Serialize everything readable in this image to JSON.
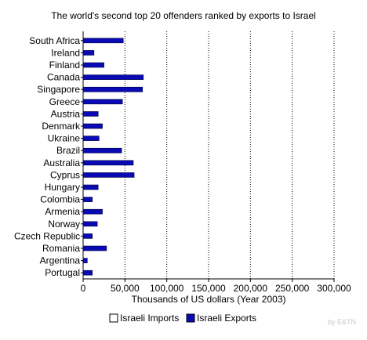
{
  "chart_data": {
    "type": "bar",
    "orientation": "horizontal",
    "title": "The world's second top 20 offenders ranked by exports to Israel",
    "xlabel": "Thousands of US dollars (Year 2003)",
    "ylabel": "",
    "xlim": [
      0,
      300000
    ],
    "x_ticks": [
      "0",
      "50,000",
      "100,000",
      "150,000",
      "200,000",
      "250,000",
      "300,000"
    ],
    "x_tick_values": [
      0,
      50000,
      100000,
      150000,
      200000,
      250000,
      300000
    ],
    "grid": "vertical-dotted",
    "legend_placement": "bottom-center",
    "categories": [
      "South Africa",
      "Ireland",
      "Finland",
      "Canada",
      "Singapore",
      "Greece",
      "Austria",
      "Denmark",
      "Ukraine",
      "Brazil",
      "Australia",
      "Cyprus",
      "Hungary",
      "Colombia",
      "Armenia",
      "Norway",
      "Czech Republic",
      "Romania",
      "Argentina",
      "Portugal"
    ],
    "series": [
      {
        "name": "Israeli Imports",
        "color": "#ffffff",
        "values": [
          0,
          0,
          0,
          0,
          0,
          0,
          0,
          0,
          0,
          0,
          0,
          0,
          0,
          0,
          0,
          0,
          0,
          0,
          0,
          0
        ]
      },
      {
        "name": "Israeli Exports",
        "color": "#0a0ab4",
        "values": [
          48000,
          13000,
          25000,
          72000,
          71000,
          47000,
          18000,
          23000,
          19000,
          46000,
          60000,
          61000,
          18000,
          11000,
          23000,
          17000,
          11000,
          28000,
          5000,
          11000
        ]
      }
    ]
  },
  "watermark": "by E&TN"
}
